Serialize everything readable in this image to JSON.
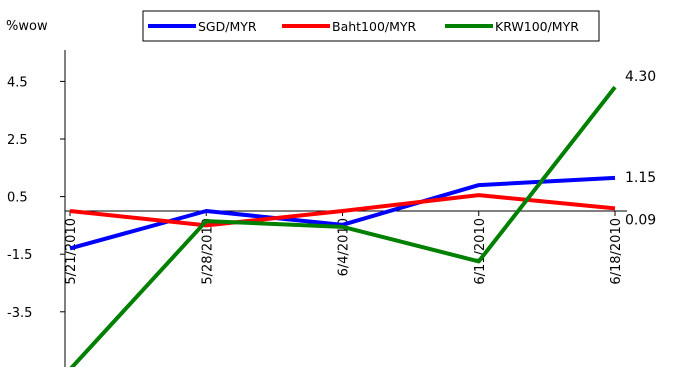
{
  "chart_data": {
    "type": "line",
    "ylabel": "%wow",
    "categories": [
      "5/21/2010",
      "5/28/2010",
      "6/4/2010",
      "6/11/2010",
      "6/18/2010"
    ],
    "ylim": [
      -5.5,
      5.5
    ],
    "yticks": [
      4.5,
      2.5,
      0.5,
      -1.5,
      -3.5
    ],
    "series": [
      {
        "name": "SGD/MYR",
        "color": "#0000ff",
        "values": [
          -1.3,
          0.0,
          -0.48,
          0.9,
          1.15
        ]
      },
      {
        "name": "Baht100/MYR",
        "color": "#ff0000",
        "values": [
          0.0,
          -0.5,
          0.0,
          0.55,
          0.09
        ]
      },
      {
        "name": "KRW100/MYR",
        "color": "#008000",
        "values": [
          -5.5,
          -0.35,
          -0.55,
          -1.75,
          4.3
        ]
      }
    ],
    "data_labels": [
      {
        "series": "KRW100/MYR",
        "text": "4.30"
      },
      {
        "series": "SGD/MYR",
        "text": "1.15"
      },
      {
        "series": "Baht100/MYR",
        "text": "0.09"
      }
    ],
    "legend": "top",
    "grid": false
  }
}
